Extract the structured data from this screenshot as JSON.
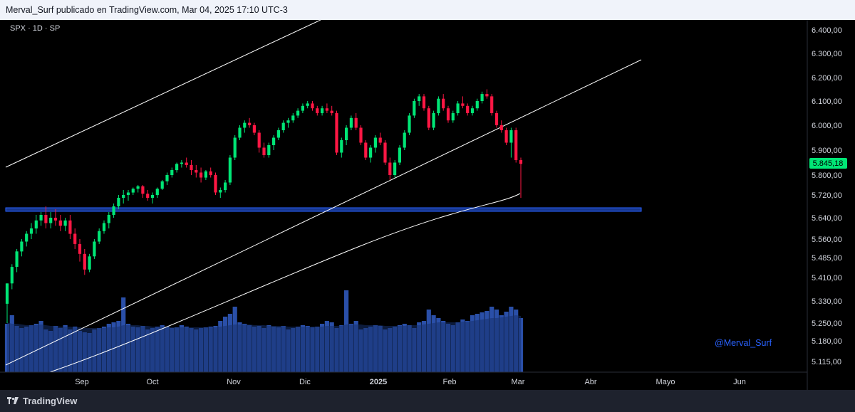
{
  "header": {
    "publish_info": "Merval_Surf publicado en TradingView.com, Mar 04, 2025 17:10 UTC-3"
  },
  "chart": {
    "symbol_info": "SPX · 1D · SP",
    "watermark": "@Merval_Surf",
    "last_price": "5.845,18",
    "colors": {
      "background": "#000000",
      "up": "#00e676",
      "down": "#ff1744",
      "volume": "#2a4fa8",
      "volume_ma": "#16316e",
      "support_zone": "#2962ff",
      "lines": "#ffffff",
      "last_price_badge": "#00e676",
      "watermark": "#2962ff"
    }
  },
  "chart_data": {
    "type": "candlestick",
    "price_ticks": [
      "6.400,00",
      "6.300,00",
      "6.200,00",
      "6.100,00",
      "6.000,00",
      "5.900,00",
      "5.800,00",
      "5.720,00",
      "5.640,00",
      "5.560,00",
      "5.485,00",
      "5.410,00",
      "5.330,00",
      "5.250,00",
      "5.180,00",
      "5.115,00"
    ],
    "time_ticks": [
      {
        "label": "Sep",
        "bold": false
      },
      {
        "label": "Oct",
        "bold": false
      },
      {
        "label": "Nov",
        "bold": false
      },
      {
        "label": "Dic",
        "bold": false
      },
      {
        "label": "2025",
        "bold": true
      },
      {
        "label": "Feb",
        "bold": false
      },
      {
        "label": "Mar",
        "bold": false
      },
      {
        "label": "Abr",
        "bold": false
      },
      {
        "label": "Mayo",
        "bold": false
      },
      {
        "label": "Jun",
        "bold": false
      }
    ],
    "ohlc": [
      [
        5320,
        5390,
        5250,
        5390
      ],
      [
        5390,
        5460,
        5370,
        5450
      ],
      [
        5450,
        5520,
        5430,
        5510
      ],
      [
        5510,
        5560,
        5490,
        5550
      ],
      [
        5550,
        5590,
        5530,
        5580
      ],
      [
        5580,
        5620,
        5560,
        5600
      ],
      [
        5600,
        5650,
        5580,
        5630
      ],
      [
        5630,
        5660,
        5610,
        5650
      ],
      [
        5650,
        5680,
        5600,
        5620
      ],
      [
        5620,
        5660,
        5600,
        5640
      ],
      [
        5640,
        5670,
        5610,
        5630
      ],
      [
        5630,
        5650,
        5590,
        5610
      ],
      [
        5610,
        5640,
        5590,
        5630
      ],
      [
        5630,
        5650,
        5560,
        5580
      ],
      [
        5580,
        5600,
        5520,
        5540
      ],
      [
        5540,
        5560,
        5470,
        5500
      ],
      [
        5500,
        5520,
        5420,
        5440
      ],
      [
        5440,
        5500,
        5430,
        5490
      ],
      [
        5490,
        5560,
        5480,
        5550
      ],
      [
        5550,
        5600,
        5540,
        5590
      ],
      [
        5590,
        5630,
        5580,
        5620
      ],
      [
        5620,
        5660,
        5600,
        5650
      ],
      [
        5650,
        5690,
        5640,
        5680
      ],
      [
        5680,
        5720,
        5670,
        5710
      ],
      [
        5710,
        5740,
        5690,
        5720
      ],
      [
        5720,
        5740,
        5700,
        5730
      ],
      [
        5730,
        5750,
        5720,
        5745
      ],
      [
        5745,
        5760,
        5730,
        5755
      ],
      [
        5755,
        5760,
        5710,
        5725
      ],
      [
        5725,
        5740,
        5700,
        5710
      ],
      [
        5710,
        5730,
        5690,
        5720
      ],
      [
        5720,
        5750,
        5710,
        5745
      ],
      [
        5745,
        5780,
        5740,
        5775
      ],
      [
        5775,
        5810,
        5760,
        5800
      ],
      [
        5800,
        5830,
        5790,
        5820
      ],
      [
        5820,
        5850,
        5810,
        5845
      ],
      [
        5845,
        5860,
        5830,
        5850
      ],
      [
        5850,
        5870,
        5830,
        5840
      ],
      [
        5840,
        5860,
        5800,
        5820
      ],
      [
        5820,
        5840,
        5790,
        5810
      ],
      [
        5810,
        5830,
        5770,
        5790
      ],
      [
        5790,
        5820,
        5780,
        5815
      ],
      [
        5815,
        5830,
        5790,
        5800
      ],
      [
        5800,
        5810,
        5720,
        5730
      ],
      [
        5730,
        5750,
        5710,
        5740
      ],
      [
        5740,
        5780,
        5730,
        5770
      ],
      [
        5770,
        5880,
        5760,
        5870
      ],
      [
        5870,
        5960,
        5860,
        5950
      ],
      [
        5950,
        6000,
        5940,
        5990
      ],
      [
        5990,
        6020,
        5970,
        6010
      ],
      [
        6010,
        6030,
        5990,
        6000
      ],
      [
        6000,
        6010,
        5960,
        5970
      ],
      [
        5970,
        5980,
        5890,
        5910
      ],
      [
        5910,
        5930,
        5870,
        5880
      ],
      [
        5880,
        5930,
        5870,
        5920
      ],
      [
        5920,
        5960,
        5900,
        5950
      ],
      [
        5950,
        5990,
        5940,
        5980
      ],
      [
        5980,
        6020,
        5970,
        6010
      ],
      [
        6010,
        6030,
        5990,
        6020
      ],
      [
        6020,
        6050,
        6010,
        6040
      ],
      [
        6040,
        6070,
        6030,
        6060
      ],
      [
        6060,
        6090,
        6050,
        6080
      ],
      [
        6080,
        6100,
        6070,
        6090
      ],
      [
        6090,
        6100,
        6060,
        6070
      ],
      [
        6070,
        6080,
        6040,
        6050
      ],
      [
        6050,
        6080,
        6040,
        6070
      ],
      [
        6070,
        6090,
        6050,
        6060
      ],
      [
        6060,
        6080,
        6040,
        6050
      ],
      [
        6050,
        6060,
        5880,
        5890
      ],
      [
        5890,
        5950,
        5870,
        5940
      ],
      [
        5940,
        6000,
        5920,
        5990
      ],
      [
        5990,
        6040,
        5980,
        6030
      ],
      [
        6030,
        6050,
        5980,
        5990
      ],
      [
        5990,
        6000,
        5920,
        5930
      ],
      [
        5930,
        5940,
        5860,
        5870
      ],
      [
        5870,
        5920,
        5850,
        5910
      ],
      [
        5910,
        5960,
        5890,
        5950
      ],
      [
        5950,
        5970,
        5920,
        5930
      ],
      [
        5930,
        5940,
        5840,
        5850
      ],
      [
        5850,
        5870,
        5780,
        5800
      ],
      [
        5800,
        5860,
        5790,
        5850
      ],
      [
        5850,
        5920,
        5840,
        5910
      ],
      [
        5910,
        5980,
        5900,
        5970
      ],
      [
        5970,
        6050,
        5960,
        6040
      ],
      [
        6040,
        6110,
        6030,
        6100
      ],
      [
        6100,
        6130,
        6080,
        6120
      ],
      [
        6120,
        6130,
        6060,
        6070
      ],
      [
        6070,
        6080,
        5980,
        5990
      ],
      [
        5990,
        6060,
        5980,
        6050
      ],
      [
        6050,
        6120,
        6040,
        6110
      ],
      [
        6110,
        6130,
        6060,
        6070
      ],
      [
        6070,
        6080,
        6010,
        6020
      ],
      [
        6020,
        6060,
        6010,
        6050
      ],
      [
        6050,
        6100,
        6040,
        6090
      ],
      [
        6090,
        6120,
        6070,
        6080
      ],
      [
        6080,
        6090,
        6040,
        6050
      ],
      [
        6050,
        6080,
        6040,
        6070
      ],
      [
        6070,
        6110,
        6060,
        6100
      ],
      [
        6100,
        6140,
        6090,
        6130
      ],
      [
        6130,
        6150,
        6110,
        6120
      ],
      [
        6120,
        6130,
        6040,
        6050
      ],
      [
        6050,
        6060,
        5990,
        6000
      ],
      [
        6000,
        6020,
        5970,
        5980
      ],
      [
        5980,
        5990,
        5920,
        5930
      ],
      [
        5930,
        5990,
        5870,
        5980
      ],
      [
        5980,
        5990,
        5850,
        5860
      ],
      [
        5860,
        5870,
        5710,
        5845
      ]
    ],
    "volume": [
      68,
      80,
      65,
      62,
      64,
      66,
      68,
      72,
      60,
      58,
      65,
      62,
      66,
      60,
      64,
      58,
      56,
      55,
      60,
      62,
      64,
      68,
      70,
      72,
      105,
      68,
      64,
      63,
      65,
      60,
      62,
      64,
      66,
      64,
      62,
      63,
      66,
      64,
      62,
      60,
      62,
      63,
      64,
      65,
      72,
      78,
      82,
      92,
      70,
      68,
      66,
      64,
      65,
      62,
      66,
      64,
      63,
      65,
      60,
      62,
      64,
      66,
      65,
      63,
      64,
      68,
      72,
      70,
      62,
      66,
      115,
      68,
      72,
      60,
      62,
      64,
      66,
      65,
      60,
      62,
      64,
      66,
      68,
      66,
      62,
      70,
      72,
      88,
      80,
      76,
      72,
      68,
      66,
      70,
      74,
      72,
      80,
      82,
      84,
      86,
      92,
      88,
      80,
      85,
      92,
      88,
      76
    ],
    "volume_ma": [
      70,
      68,
      68,
      67,
      66,
      66,
      66,
      67,
      66,
      65,
      65,
      64,
      64,
      64,
      63,
      63,
      62,
      62,
      62,
      62,
      62,
      63,
      63,
      64,
      66,
      66,
      66,
      66,
      65,
      65,
      64,
      64,
      64,
      64,
      63,
      63,
      63,
      63,
      63,
      63,
      63,
      63,
      63,
      63,
      64,
      65,
      66,
      67,
      67,
      67,
      67,
      66,
      66,
      66,
      65,
      65,
      65,
      65,
      64,
      64,
      64,
      64,
      64,
      64,
      64,
      64,
      65,
      65,
      65,
      65,
      67,
      67,
      67,
      67,
      66,
      66,
      66,
      66,
      65,
      65,
      65,
      65,
      65,
      66,
      66,
      66,
      67,
      68,
      69,
      70,
      70,
      70,
      70,
      70,
      71,
      71,
      72,
      73,
      74,
      75,
      76,
      76,
      77,
      78,
      79,
      80,
      79
    ]
  }
}
